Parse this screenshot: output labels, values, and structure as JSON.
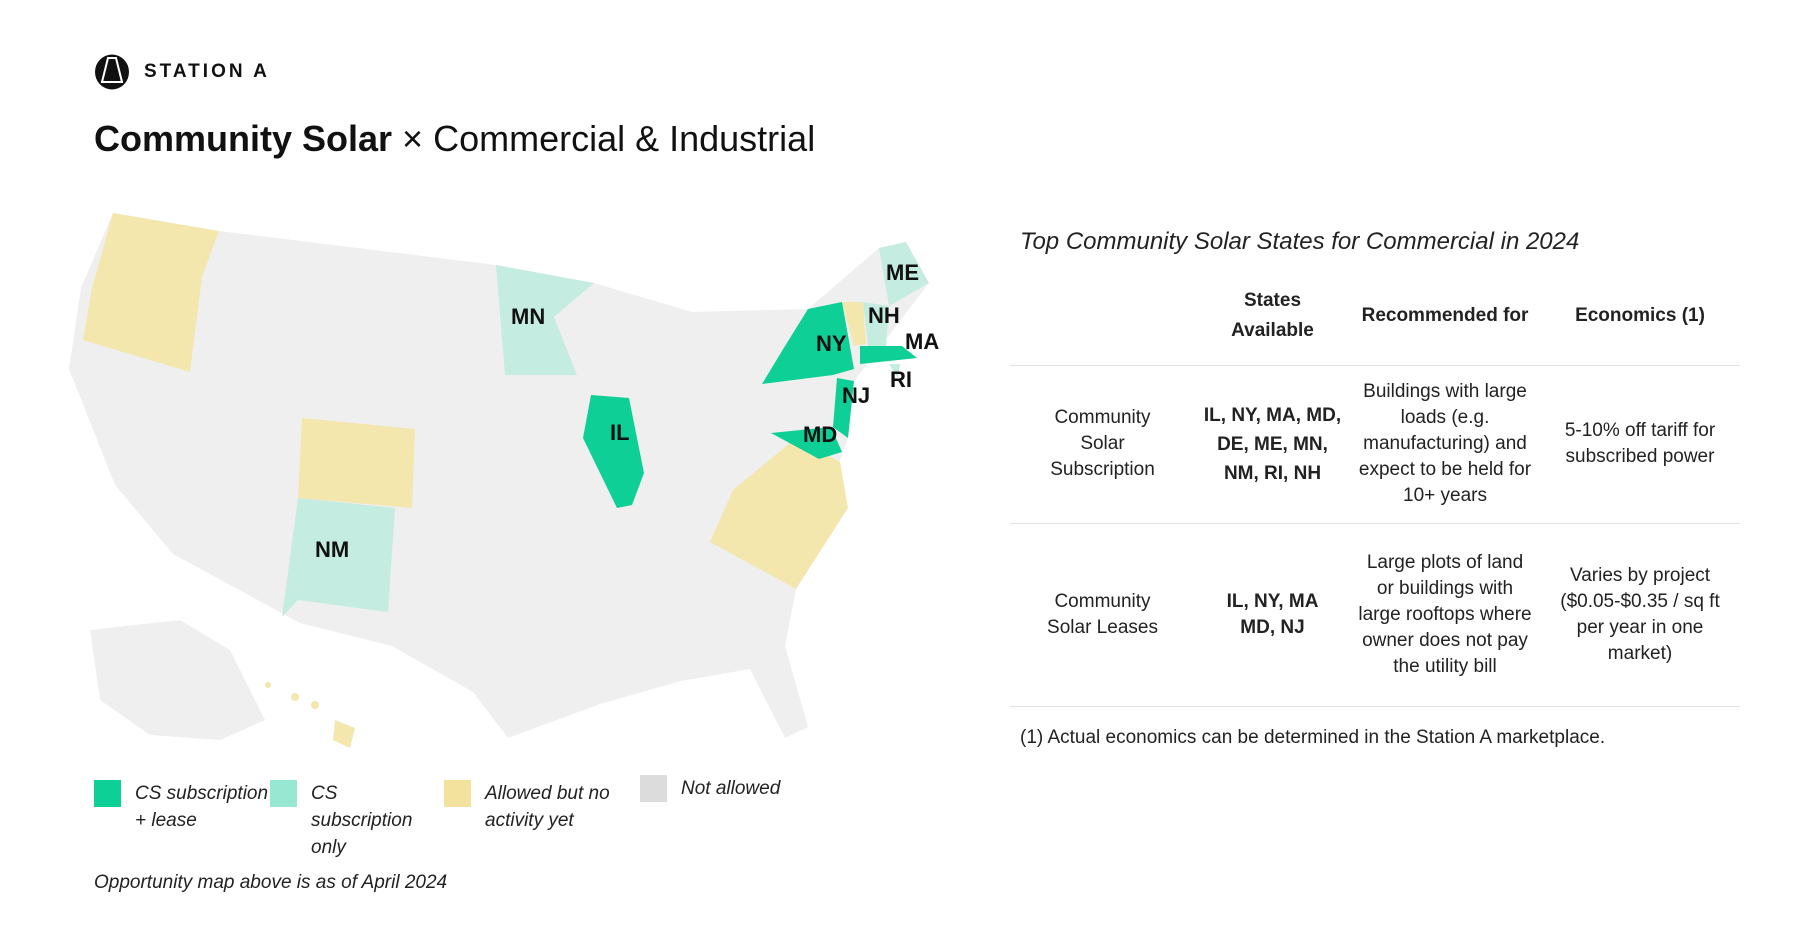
{
  "brand": {
    "name": "STATION A"
  },
  "title": {
    "bold": "Community Solar",
    "rest": " × Commercial & Industrial"
  },
  "map": {
    "colors": {
      "sub_lease": "#0ecf95",
      "sub_only": "#c5ece0",
      "allowed": "#f3e7ad",
      "not_allowed": "#efefef"
    },
    "labels": {
      "ME": "ME",
      "NH": "NH",
      "MA": "MA",
      "NY": "NY",
      "RI": "RI",
      "NJ": "NJ",
      "MD": "MD",
      "IL": "IL",
      "MN": "MN",
      "NM": "NM"
    },
    "legend": [
      {
        "label": "CS subscription + lease",
        "color": "#0ecf95"
      },
      {
        "label": "CS subscription only",
        "color": "#97e8d2"
      },
      {
        "label": "Allowed but no activity yet",
        "color": "#f2e29e"
      },
      {
        "label": "Not allowed",
        "color": "#dcdcdc"
      }
    ],
    "note": "Opportunity map above is as of April 2024"
  },
  "table": {
    "title": "Top Community Solar States for Commercial in 2024",
    "headers": [
      "",
      "States Available",
      "Recommended for",
      "Economics (1)"
    ],
    "rows": [
      [
        "Community Solar Subscription",
        "IL, NY, MA, MD, DE, ME, MN, NM, RI, NH",
        "Buildings with large loads (e.g. manufacturing) and expect to be held for 10+ years",
        "5-10% off tariff for subscribed power"
      ],
      [
        "Community Solar Leases",
        "IL, NY, MA MD, NJ",
        "Large plots of land or buildings with large rooftops where owner does not pay the utility bill",
        "Varies by project ($0.05-$0.35 / sq ft per year in one market)"
      ]
    ],
    "footnote": "(1) Actual economics can be determined in the Station A marketplace."
  }
}
